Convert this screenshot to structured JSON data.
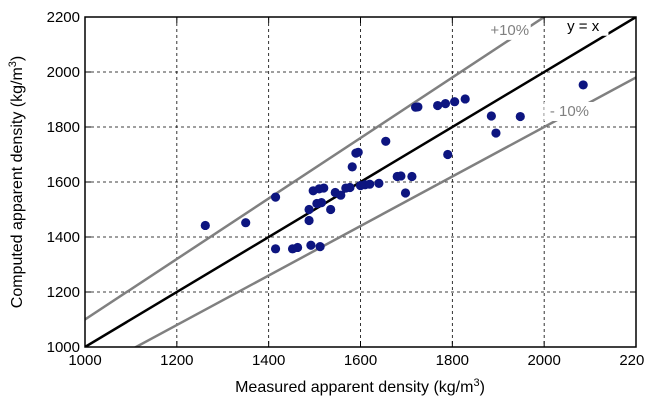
{
  "chart_data": {
    "type": "scatter",
    "title": "",
    "xlabel": "Measured apparent density (kg/m",
    "xlabel_sup": "3",
    "xlabel_tail": ")",
    "ylabel": "Computed apparent density (kg/m",
    "ylabel_sup": "3",
    "ylabel_tail": ")",
    "xlim": [
      1000,
      2200
    ],
    "ylim": [
      1000,
      2200
    ],
    "xticks": [
      1000,
      1200,
      1400,
      1600,
      1800,
      2000,
      2200
    ],
    "yticks": [
      1000,
      1200,
      1400,
      1600,
      1800,
      2000,
      2200
    ],
    "grid": true,
    "grid_style": "dashed",
    "reference_lines": [
      {
        "label": "y = x",
        "slope": 1.0
      },
      {
        "label": "+10%",
        "slope": 1.1
      },
      {
        "label": "- 10%",
        "slope": 0.9
      }
    ],
    "marker_color": "#0d1580",
    "series": [
      {
        "points": [
          [
            1262,
            1442
          ],
          [
            1350,
            1452
          ],
          [
            1415,
            1545
          ],
          [
            1415,
            1357
          ],
          [
            1452,
            1357
          ],
          [
            1463,
            1362
          ],
          [
            1488,
            1460
          ],
          [
            1488,
            1500
          ],
          [
            1492,
            1370
          ],
          [
            1497,
            1568
          ],
          [
            1505,
            1522
          ],
          [
            1510,
            1575
          ],
          [
            1512,
            1365
          ],
          [
            1515,
            1525
          ],
          [
            1520,
            1578
          ],
          [
            1535,
            1500
          ],
          [
            1545,
            1562
          ],
          [
            1557,
            1552
          ],
          [
            1568,
            1578
          ],
          [
            1577,
            1580
          ],
          [
            1582,
            1655
          ],
          [
            1590,
            1705
          ],
          [
            1595,
            1708
          ],
          [
            1600,
            1587
          ],
          [
            1610,
            1590
          ],
          [
            1620,
            1592
          ],
          [
            1640,
            1595
          ],
          [
            1655,
            1748
          ],
          [
            1680,
            1620
          ],
          [
            1688,
            1622
          ],
          [
            1698,
            1560
          ],
          [
            1712,
            1620
          ],
          [
            1720,
            1872
          ],
          [
            1725,
            1873
          ],
          [
            1768,
            1878
          ],
          [
            1785,
            1885
          ],
          [
            1790,
            1700
          ],
          [
            1805,
            1892
          ],
          [
            1828,
            1902
          ],
          [
            1885,
            1840
          ],
          [
            1895,
            1778
          ],
          [
            1948,
            1838
          ],
          [
            2085,
            1953
          ]
        ]
      }
    ]
  }
}
